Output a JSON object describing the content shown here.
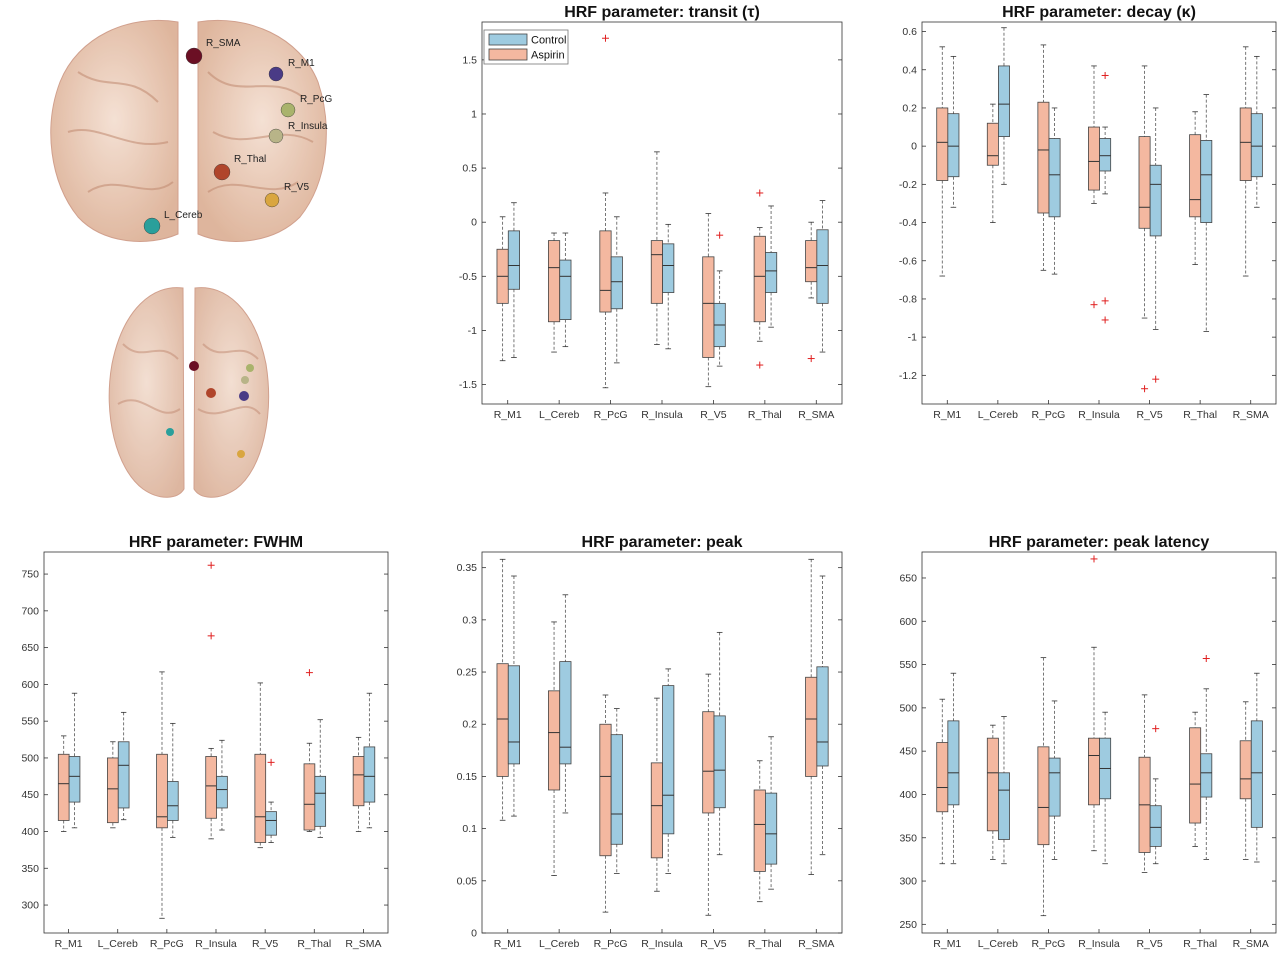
{
  "regions_panel": {
    "labels": [
      "R_SMA",
      "R_M1",
      "R_PcG",
      "R_Insula",
      "R_Thal",
      "R_V5",
      "L_Cereb"
    ],
    "colors": {
      "R_SMA": "#6b0f24",
      "R_M1": "#4a3b86",
      "R_PcG": "#a9b36c",
      "R_Insula": "#b8b488",
      "R_Thal": "#b0452b",
      "R_V5": "#d9a640",
      "L_Cereb": "#2a9f9b"
    },
    "brain_color": "#e9c4ad"
  },
  "legend": {
    "control": "Control",
    "aspirin": "Aspirin"
  },
  "colors": {
    "control": "#9ecbe0",
    "aspirin": "#f4b8a0",
    "outlier": "#e02020",
    "edge": "#444444"
  },
  "chart_data": [
    {
      "type": "box",
      "title": "HRF parameter: transit (τ)",
      "categories": [
        "R_M1",
        "L_Cereb",
        "R_PcG",
        "R_Insula",
        "R_V5",
        "R_Thal",
        "R_SMA"
      ],
      "ylim": [
        -1.68,
        1.85
      ],
      "yticks": [
        1.5,
        1,
        0.5,
        0,
        -0.5,
        -1,
        -1.5
      ],
      "legend_position": "top-left",
      "series": [
        {
          "name": "Aspirin",
          "boxes": [
            {
              "min": -1.28,
              "q1": -0.75,
              "median": -0.5,
              "q3": -0.25,
              "max": 0.05,
              "outliers": []
            },
            {
              "min": -1.2,
              "q1": -0.92,
              "median": -0.42,
              "q3": -0.17,
              "max": -0.1,
              "outliers": []
            },
            {
              "min": -1.53,
              "q1": -0.83,
              "median": -0.63,
              "q3": -0.08,
              "max": 0.27,
              "outliers": [
                1.7
              ]
            },
            {
              "min": -1.13,
              "q1": -0.75,
              "median": -0.3,
              "q3": -0.17,
              "max": 0.65,
              "outliers": []
            },
            {
              "min": -1.52,
              "q1": -1.25,
              "median": -0.75,
              "q3": -0.32,
              "max": 0.08,
              "outliers": []
            },
            {
              "min": -1.1,
              "q1": -0.92,
              "median": -0.5,
              "q3": -0.13,
              "max": -0.05,
              "outliers": [
                0.27,
                -1.32
              ]
            },
            {
              "min": -0.7,
              "q1": -0.55,
              "median": -0.42,
              "q3": -0.17,
              "max": 0.0,
              "outliers": [
                -1.26
              ]
            }
          ]
        },
        {
          "name": "Control",
          "boxes": [
            {
              "min": -1.25,
              "q1": -0.62,
              "median": -0.4,
              "q3": -0.08,
              "max": 0.18,
              "outliers": []
            },
            {
              "min": -1.15,
              "q1": -0.9,
              "median": -0.5,
              "q3": -0.35,
              "max": -0.1,
              "outliers": []
            },
            {
              "min": -1.3,
              "q1": -0.8,
              "median": -0.55,
              "q3": -0.32,
              "max": 0.05,
              "outliers": []
            },
            {
              "min": -1.17,
              "q1": -0.65,
              "median": -0.4,
              "q3": -0.2,
              "max": -0.02,
              "outliers": []
            },
            {
              "min": -1.33,
              "q1": -1.15,
              "median": -0.95,
              "q3": -0.75,
              "max": -0.45,
              "outliers": [
                -0.12
              ]
            },
            {
              "min": -0.97,
              "q1": -0.65,
              "median": -0.45,
              "q3": -0.28,
              "max": 0.15,
              "outliers": []
            },
            {
              "min": -1.2,
              "q1": -0.75,
              "median": -0.4,
              "q3": -0.07,
              "max": 0.2,
              "outliers": []
            }
          ]
        }
      ]
    },
    {
      "type": "box",
      "title": "HRF parameter: decay (κ)",
      "categories": [
        "R_M1",
        "L_Cereb",
        "R_PcG",
        "R_Insula",
        "R_V5",
        "R_Thal",
        "R_SMA"
      ],
      "ylim": [
        -1.35,
        0.65
      ],
      "yticks": [
        0.6,
        0.4,
        0.2,
        0,
        -0.2,
        -0.4,
        -0.6,
        -0.8,
        -1,
        -1.2
      ],
      "series": [
        {
          "name": "Aspirin",
          "boxes": [
            {
              "min": -0.68,
              "q1": -0.18,
              "median": 0.02,
              "q3": 0.2,
              "max": 0.52,
              "outliers": []
            },
            {
              "min": -0.4,
              "q1": -0.1,
              "median": -0.05,
              "q3": 0.12,
              "max": 0.22,
              "outliers": []
            },
            {
              "min": -0.65,
              "q1": -0.35,
              "median": -0.02,
              "q3": 0.23,
              "max": 0.53,
              "outliers": []
            },
            {
              "min": -0.3,
              "q1": -0.23,
              "median": -0.08,
              "q3": 0.1,
              "max": 0.42,
              "outliers": [
                -0.83
              ]
            },
            {
              "min": -0.9,
              "q1": -0.43,
              "median": -0.32,
              "q3": 0.05,
              "max": 0.42,
              "outliers": [
                -1.27
              ]
            },
            {
              "min": -0.62,
              "q1": -0.37,
              "median": -0.28,
              "q3": 0.06,
              "max": 0.18,
              "outliers": []
            },
            {
              "min": -0.68,
              "q1": -0.18,
              "median": 0.02,
              "q3": 0.2,
              "max": 0.52,
              "outliers": []
            }
          ]
        },
        {
          "name": "Control",
          "boxes": [
            {
              "min": -0.32,
              "q1": -0.16,
              "median": 0.0,
              "q3": 0.17,
              "max": 0.47,
              "outliers": []
            },
            {
              "min": -0.2,
              "q1": 0.05,
              "median": 0.22,
              "q3": 0.42,
              "max": 0.62,
              "outliers": []
            },
            {
              "min": -0.67,
              "q1": -0.37,
              "median": -0.15,
              "q3": 0.04,
              "max": 0.2,
              "outliers": []
            },
            {
              "min": -0.25,
              "q1": -0.13,
              "median": -0.05,
              "q3": 0.04,
              "max": 0.1,
              "outliers": [
                0.37,
                -0.81,
                -0.91
              ]
            },
            {
              "min": -0.96,
              "q1": -0.47,
              "median": -0.2,
              "q3": -0.1,
              "max": 0.2,
              "outliers": [
                -1.22
              ]
            },
            {
              "min": -0.97,
              "q1": -0.4,
              "median": -0.15,
              "q3": 0.03,
              "max": 0.27,
              "outliers": []
            },
            {
              "min": -0.32,
              "q1": -0.16,
              "median": 0.0,
              "q3": 0.17,
              "max": 0.47,
              "outliers": []
            }
          ]
        }
      ]
    },
    {
      "type": "box",
      "title": "HRF parameter: FWHM",
      "categories": [
        "R_M1",
        "L_Cereb",
        "R_PcG",
        "R_Insula",
        "R_V5",
        "R_Thal",
        "R_SMA"
      ],
      "ylim": [
        262,
        780
      ],
      "yticks": [
        750,
        700,
        650,
        600,
        550,
        500,
        450,
        400,
        350,
        300
      ],
      "series": [
        {
          "name": "Aspirin",
          "boxes": [
            {
              "min": 400,
              "q1": 415,
              "median": 465,
              "q3": 505,
              "max": 530,
              "outliers": []
            },
            {
              "min": 405,
              "q1": 412,
              "median": 458,
              "q3": 500,
              "max": 522,
              "outliers": []
            },
            {
              "min": 282,
              "q1": 405,
              "median": 420,
              "q3": 505,
              "max": 617,
              "outliers": []
            },
            {
              "min": 390,
              "q1": 418,
              "median": 462,
              "q3": 502,
              "max": 513,
              "outliers": [
                762,
                666
              ]
            },
            {
              "min": 378,
              "q1": 385,
              "median": 420,
              "q3": 505,
              "max": 602,
              "outliers": []
            },
            {
              "min": 400,
              "q1": 402,
              "median": 437,
              "q3": 492,
              "max": 520,
              "outliers": [
                616
              ]
            },
            {
              "min": 400,
              "q1": 435,
              "median": 477,
              "q3": 502,
              "max": 528,
              "outliers": []
            }
          ]
        },
        {
          "name": "Control",
          "boxes": [
            {
              "min": 405,
              "q1": 440,
              "median": 475,
              "q3": 502,
              "max": 588,
              "outliers": []
            },
            {
              "min": 416,
              "q1": 432,
              "median": 490,
              "q3": 522,
              "max": 562,
              "outliers": []
            },
            {
              "min": 392,
              "q1": 415,
              "median": 435,
              "q3": 468,
              "max": 547,
              "outliers": []
            },
            {
              "min": 402,
              "q1": 432,
              "median": 457,
              "q3": 475,
              "max": 524,
              "outliers": []
            },
            {
              "min": 385,
              "q1": 395,
              "median": 415,
              "q3": 427,
              "max": 440,
              "outliers": [
                494
              ]
            },
            {
              "min": 392,
              "q1": 407,
              "median": 452,
              "q3": 475,
              "max": 552,
              "outliers": []
            },
            {
              "min": 405,
              "q1": 440,
              "median": 475,
              "q3": 515,
              "max": 588,
              "outliers": []
            }
          ]
        }
      ]
    },
    {
      "type": "box",
      "title": "HRF parameter: peak",
      "categories": [
        "R_M1",
        "L_Cereb",
        "R_PcG",
        "R_Insula",
        "R_V5",
        "R_Thal",
        "R_SMA"
      ],
      "ylim": [
        0,
        0.365
      ],
      "yticks": [
        0.35,
        0.3,
        0.25,
        0.2,
        0.15,
        0.1,
        0.05,
        0
      ],
      "series": [
        {
          "name": "Aspirin",
          "boxes": [
            {
              "min": 0.108,
              "q1": 0.15,
              "median": 0.205,
              "q3": 0.258,
              "max": 0.358,
              "outliers": []
            },
            {
              "min": 0.055,
              "q1": 0.137,
              "median": 0.192,
              "q3": 0.232,
              "max": 0.298,
              "outliers": []
            },
            {
              "min": 0.02,
              "q1": 0.074,
              "median": 0.15,
              "q3": 0.2,
              "max": 0.228,
              "outliers": []
            },
            {
              "min": 0.04,
              "q1": 0.072,
              "median": 0.122,
              "q3": 0.163,
              "max": 0.225,
              "outliers": []
            },
            {
              "min": 0.017,
              "q1": 0.115,
              "median": 0.155,
              "q3": 0.212,
              "max": 0.248,
              "outliers": []
            },
            {
              "min": 0.03,
              "q1": 0.059,
              "median": 0.104,
              "q3": 0.137,
              "max": 0.165,
              "outliers": []
            },
            {
              "min": 0.056,
              "q1": 0.15,
              "median": 0.205,
              "q3": 0.245,
              "max": 0.358,
              "outliers": []
            }
          ]
        },
        {
          "name": "Control",
          "boxes": [
            {
              "min": 0.112,
              "q1": 0.162,
              "median": 0.183,
              "q3": 0.256,
              "max": 0.342,
              "outliers": []
            },
            {
              "min": 0.115,
              "q1": 0.162,
              "median": 0.178,
              "q3": 0.26,
              "max": 0.324,
              "outliers": []
            },
            {
              "min": 0.057,
              "q1": 0.085,
              "median": 0.114,
              "q3": 0.19,
              "max": 0.215,
              "outliers": []
            },
            {
              "min": 0.057,
              "q1": 0.095,
              "median": 0.132,
              "q3": 0.237,
              "max": 0.253,
              "outliers": []
            },
            {
              "min": 0.075,
              "q1": 0.12,
              "median": 0.156,
              "q3": 0.208,
              "max": 0.288,
              "outliers": []
            },
            {
              "min": 0.042,
              "q1": 0.066,
              "median": 0.095,
              "q3": 0.134,
              "max": 0.188,
              "outliers": []
            },
            {
              "min": 0.075,
              "q1": 0.16,
              "median": 0.183,
              "q3": 0.255,
              "max": 0.342,
              "outliers": []
            }
          ]
        }
      ]
    },
    {
      "type": "box",
      "title": "HRF parameter: peak latency",
      "categories": [
        "R_M1",
        "L_Cereb",
        "R_PcG",
        "R_Insula",
        "R_V5",
        "R_Thal",
        "R_SMA"
      ],
      "ylim": [
        240,
        680
      ],
      "yticks": [
        650,
        600,
        550,
        500,
        450,
        400,
        350,
        300,
        250
      ],
      "series": [
        {
          "name": "Aspirin",
          "boxes": [
            {
              "min": 320,
              "q1": 380,
              "median": 408,
              "q3": 460,
              "max": 510,
              "outliers": []
            },
            {
              "min": 325,
              "q1": 358,
              "median": 425,
              "q3": 465,
              "max": 480,
              "outliers": []
            },
            {
              "min": 260,
              "q1": 342,
              "median": 385,
              "q3": 455,
              "max": 558,
              "outliers": []
            },
            {
              "min": 335,
              "q1": 388,
              "median": 445,
              "q3": 465,
              "max": 570,
              "outliers": [
                672
              ]
            },
            {
              "min": 310,
              "q1": 333,
              "median": 388,
              "q3": 443,
              "max": 515,
              "outliers": []
            },
            {
              "min": 340,
              "q1": 367,
              "median": 412,
              "q3": 477,
              "max": 495,
              "outliers": []
            },
            {
              "min": 325,
              "q1": 395,
              "median": 418,
              "q3": 462,
              "max": 507,
              "outliers": []
            }
          ]
        },
        {
          "name": "Control",
          "boxes": [
            {
              "min": 320,
              "q1": 388,
              "median": 425,
              "q3": 485,
              "max": 540,
              "outliers": []
            },
            {
              "min": 320,
              "q1": 348,
              "median": 405,
              "q3": 425,
              "max": 490,
              "outliers": []
            },
            {
              "min": 325,
              "q1": 375,
              "median": 425,
              "q3": 442,
              "max": 508,
              "outliers": []
            },
            {
              "min": 320,
              "q1": 395,
              "median": 430,
              "q3": 465,
              "max": 495,
              "outliers": []
            },
            {
              "min": 320,
              "q1": 340,
              "median": 362,
              "q3": 387,
              "max": 418,
              "outliers": [
                476
              ]
            },
            {
              "min": 325,
              "q1": 397,
              "median": 425,
              "q3": 447,
              "max": 522,
              "outliers": [
                557
              ]
            },
            {
              "min": 322,
              "q1": 362,
              "median": 425,
              "q3": 485,
              "max": 540,
              "outliers": []
            }
          ]
        }
      ]
    }
  ]
}
